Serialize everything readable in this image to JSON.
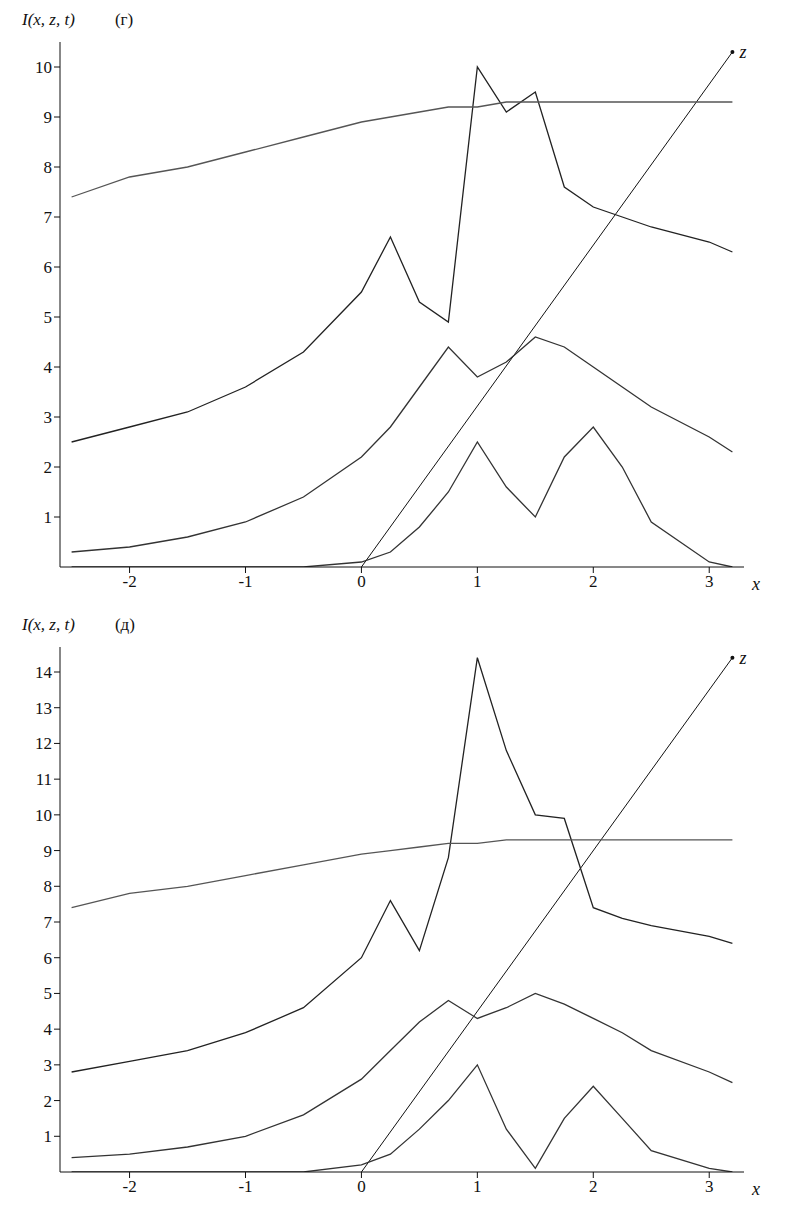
{
  "chart_data": [
    {
      "type": "line",
      "title": "(г)",
      "y_label": "I(x, z, t)",
      "x_label": "x",
      "x": [
        -2.5,
        -2,
        -1.5,
        -1,
        -0.5,
        0,
        0.25,
        0.5,
        0.75,
        1,
        1.25,
        1.5,
        1.75,
        2,
        2.25,
        2.5,
        3,
        3.2
      ],
      "series": [
        {
          "color": "#333333",
          "values": [
            0,
            0,
            0,
            0,
            0,
            0.1,
            0.3,
            0.8,
            1.5,
            2.5,
            1.6,
            1.0,
            2.2,
            2.8,
            2.0,
            0.9,
            0.1,
            0
          ]
        },
        {
          "color": "#333333",
          "values": [
            0.3,
            0.4,
            0.6,
            0.9,
            1.4,
            2.2,
            2.8,
            3.6,
            4.4,
            3.8,
            4.1,
            4.6,
            4.4,
            4.0,
            3.6,
            3.2,
            2.6,
            2.3
          ]
        },
        {
          "color": "#222222",
          "values": [
            2.5,
            2.8,
            3.1,
            3.6,
            4.3,
            5.5,
            6.6,
            5.3,
            4.9,
            10.0,
            9.1,
            9.5,
            7.6,
            7.2,
            7.0,
            6.8,
            6.5,
            6.3
          ]
        },
        {
          "color": "#555555",
          "values": [
            7.4,
            7.8,
            8.0,
            8.3,
            8.6,
            8.9,
            9.0,
            9.1,
            9.2,
            9.2,
            9.3,
            9.3,
            9.3,
            9.3,
            9.3,
            9.3,
            9.3,
            9.3
          ]
        }
      ],
      "xlim": [
        -2.6,
        3.3
      ],
      "xticks": [
        -2,
        -1,
        0,
        1,
        2,
        3
      ],
      "ylim": [
        0,
        10.5
      ],
      "yticks": [
        1,
        2,
        3,
        4,
        5,
        6,
        7,
        8,
        9,
        10
      ],
      "annotations": [
        {
          "text": "z",
          "x": [
            0,
            3.2
          ],
          "y": [
            0,
            10.3
          ]
        }
      ]
    },
    {
      "type": "line",
      "title": "(д)",
      "y_label": "I(x, z, t)",
      "x_label": "x",
      "x": [
        -2.5,
        -2,
        -1.5,
        -1,
        -0.5,
        0,
        0.25,
        0.5,
        0.75,
        1,
        1.25,
        1.5,
        1.75,
        2,
        2.25,
        2.5,
        3,
        3.2
      ],
      "series": [
        {
          "color": "#333333",
          "values": [
            0,
            0,
            0,
            0,
            0,
            0.2,
            0.5,
            1.2,
            2.0,
            3.0,
            1.2,
            0.1,
            1.5,
            2.4,
            1.5,
            0.6,
            0.1,
            0
          ]
        },
        {
          "color": "#333333",
          "values": [
            0.4,
            0.5,
            0.7,
            1.0,
            1.6,
            2.6,
            3.4,
            4.2,
            4.8,
            4.3,
            4.6,
            5.0,
            4.7,
            4.3,
            3.9,
            3.4,
            2.8,
            2.5
          ]
        },
        {
          "color": "#222222",
          "values": [
            2.8,
            3.1,
            3.4,
            3.9,
            4.6,
            6.0,
            7.6,
            6.2,
            8.8,
            14.4,
            11.8,
            10.0,
            9.9,
            7.4,
            7.1,
            6.9,
            6.6,
            6.4
          ]
        },
        {
          "color": "#555555",
          "values": [
            7.4,
            7.8,
            8.0,
            8.3,
            8.6,
            8.9,
            9.0,
            9.1,
            9.2,
            9.2,
            9.3,
            9.3,
            9.3,
            9.3,
            9.3,
            9.3,
            9.3,
            9.3
          ]
        }
      ],
      "xlim": [
        -2.6,
        3.3
      ],
      "xticks": [
        -2,
        -1,
        0,
        1,
        2,
        3
      ],
      "ylim": [
        0,
        14.7
      ],
      "yticks": [
        1,
        2,
        3,
        4,
        5,
        6,
        7,
        8,
        9,
        10,
        11,
        12,
        13,
        14
      ],
      "annotations": [
        {
          "text": "z",
          "x": [
            0,
            3.2
          ],
          "y": [
            0,
            14.4
          ]
        }
      ]
    }
  ]
}
